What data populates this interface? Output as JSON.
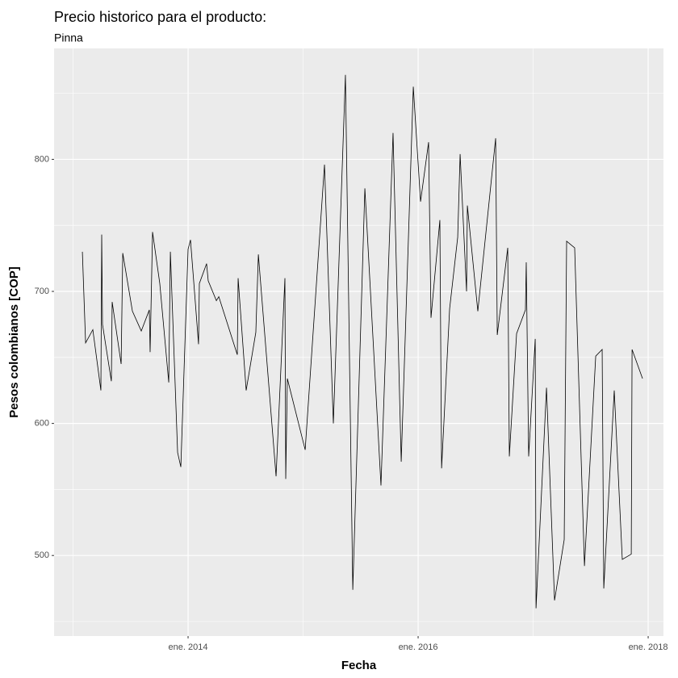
{
  "chart_data": {
    "type": "line",
    "title": "Precio historico para el producto:",
    "subtitle": "Pinna",
    "x_label": "Fecha",
    "y_label": "Pesos colombianos [COP]",
    "xlim": [
      2012.835,
      2018.133
    ],
    "xticks": [
      {
        "value": 2014,
        "label": "ene. 2014"
      },
      {
        "value": 2016,
        "label": "ene. 2016"
      },
      {
        "value": 2018,
        "label": "ene. 2018"
      }
    ],
    "ylim": [
      439,
      884
    ],
    "yticks": [
      500,
      600,
      700,
      800
    ],
    "grid": true,
    "series": [
      {
        "color": "#000000",
        "x": [
          2013.081,
          2013.109,
          2013.172,
          2013.242,
          2013.249,
          2013.256,
          2013.333,
          2013.34,
          2013.418,
          2013.432,
          2013.516,
          2013.593,
          2013.663,
          2013.67,
          2013.691,
          2013.754,
          2013.832,
          2013.846,
          2013.909,
          2013.937,
          2014.0,
          2014.021,
          2014.091,
          2014.098,
          2014.161,
          2014.175,
          2014.246,
          2014.267,
          2014.428,
          2014.435,
          2014.505,
          2014.589,
          2014.611,
          2014.765,
          2014.842,
          2014.849,
          2014.863,
          2015.018,
          2015.186,
          2015.263,
          2015.368,
          2015.432,
          2015.537,
          2015.677,
          2015.782,
          2015.853,
          2015.958,
          2016.021,
          2016.091,
          2016.112,
          2016.189,
          2016.204,
          2016.274,
          2016.344,
          2016.365,
          2016.421,
          2016.428,
          2016.519,
          2016.674,
          2016.688,
          2016.779,
          2016.793,
          2016.856,
          2016.933,
          2016.94,
          2016.961,
          2017.018,
          2017.025,
          2017.116,
          2017.186,
          2017.27,
          2017.291,
          2017.361,
          2017.446,
          2017.544,
          2017.6,
          2017.614,
          2017.705,
          2017.775,
          2017.853,
          2017.86,
          2017.951
        ],
        "values": [
          730,
          661,
          671,
          625,
          743,
          675,
          632,
          692,
          645,
          729,
          685,
          670,
          686,
          654,
          745,
          706,
          631,
          730,
          578,
          567,
          732,
          739,
          660,
          706,
          721,
          708,
          693,
          696,
          652,
          710,
          625,
          669,
          728,
          560,
          710,
          558,
          634,
          580,
          796,
          600,
          864,
          474,
          778,
          553,
          820,
          571,
          855,
          768,
          813,
          680,
          754,
          566,
          687,
          741,
          804,
          700,
          765,
          685,
          816,
          667,
          733,
          575,
          668,
          686,
          722,
          575,
          664,
          460,
          627,
          466,
          512,
          738,
          733,
          492,
          651,
          656,
          475,
          625,
          497,
          501,
          656,
          634
        ]
      }
    ]
  }
}
